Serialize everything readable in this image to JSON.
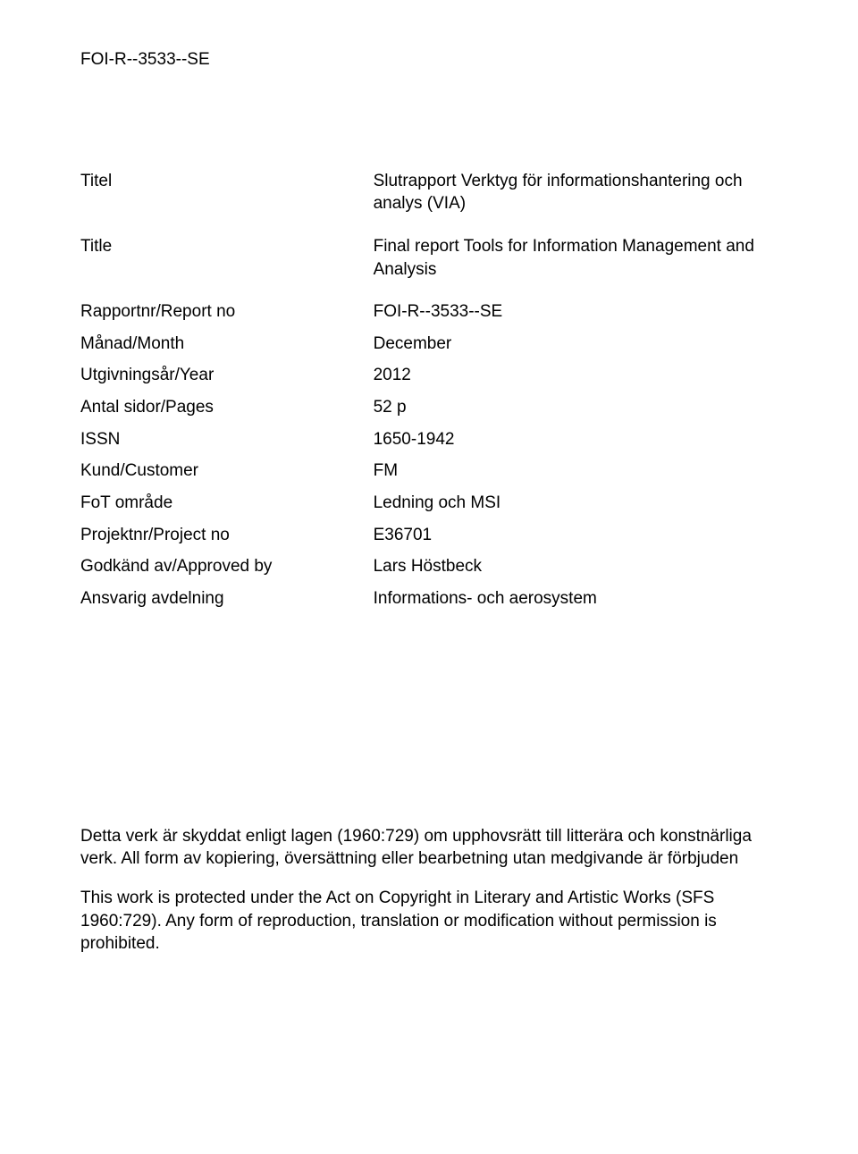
{
  "header_id": "FOI-R--3533--SE",
  "meta": {
    "titel_label": "Titel",
    "titel_value": "Slutrapport Verktyg för informations­hantering och analys (VIA)",
    "title_label": "Title",
    "title_value": "Final report Tools for Information Management and Analysis",
    "reportno_label": "Rapportnr/Report no",
    "reportno_value": "FOI-R--3533--SE",
    "month_label": "Månad/Month",
    "month_value": "December",
    "year_label": "Utgivningsår/Year",
    "year_value": "2012",
    "pages_label": "Antal sidor/Pages",
    "pages_value": "52 p",
    "issn_label": "ISSN",
    "issn_value": "1650-1942",
    "customer_label": "Kund/Customer",
    "customer_value": "FM",
    "fot_label": "FoT område",
    "fot_value": "Ledning och MSI",
    "projectno_label": "Projektnr/Project no",
    "projectno_value": "E36701",
    "approved_label": "Godkänd av/Approved by",
    "approved_value": "Lars Höstbeck",
    "dept_label": "Ansvarig avdelning",
    "dept_value": "Informations- och aerosystem"
  },
  "copyright": {
    "p1": "Detta verk är skyddat enligt lagen (1960:729) om upphovsrätt till litterära och konstnärliga verk. All form av kopiering, översättning eller bearbetning utan medgivande är förbjuden",
    "p2": "This work is protected under the Act on Copyright in Literary and Artistic Works (SFS 1960:729). Any form of reproduction, translation or modification without permission is prohibited."
  }
}
